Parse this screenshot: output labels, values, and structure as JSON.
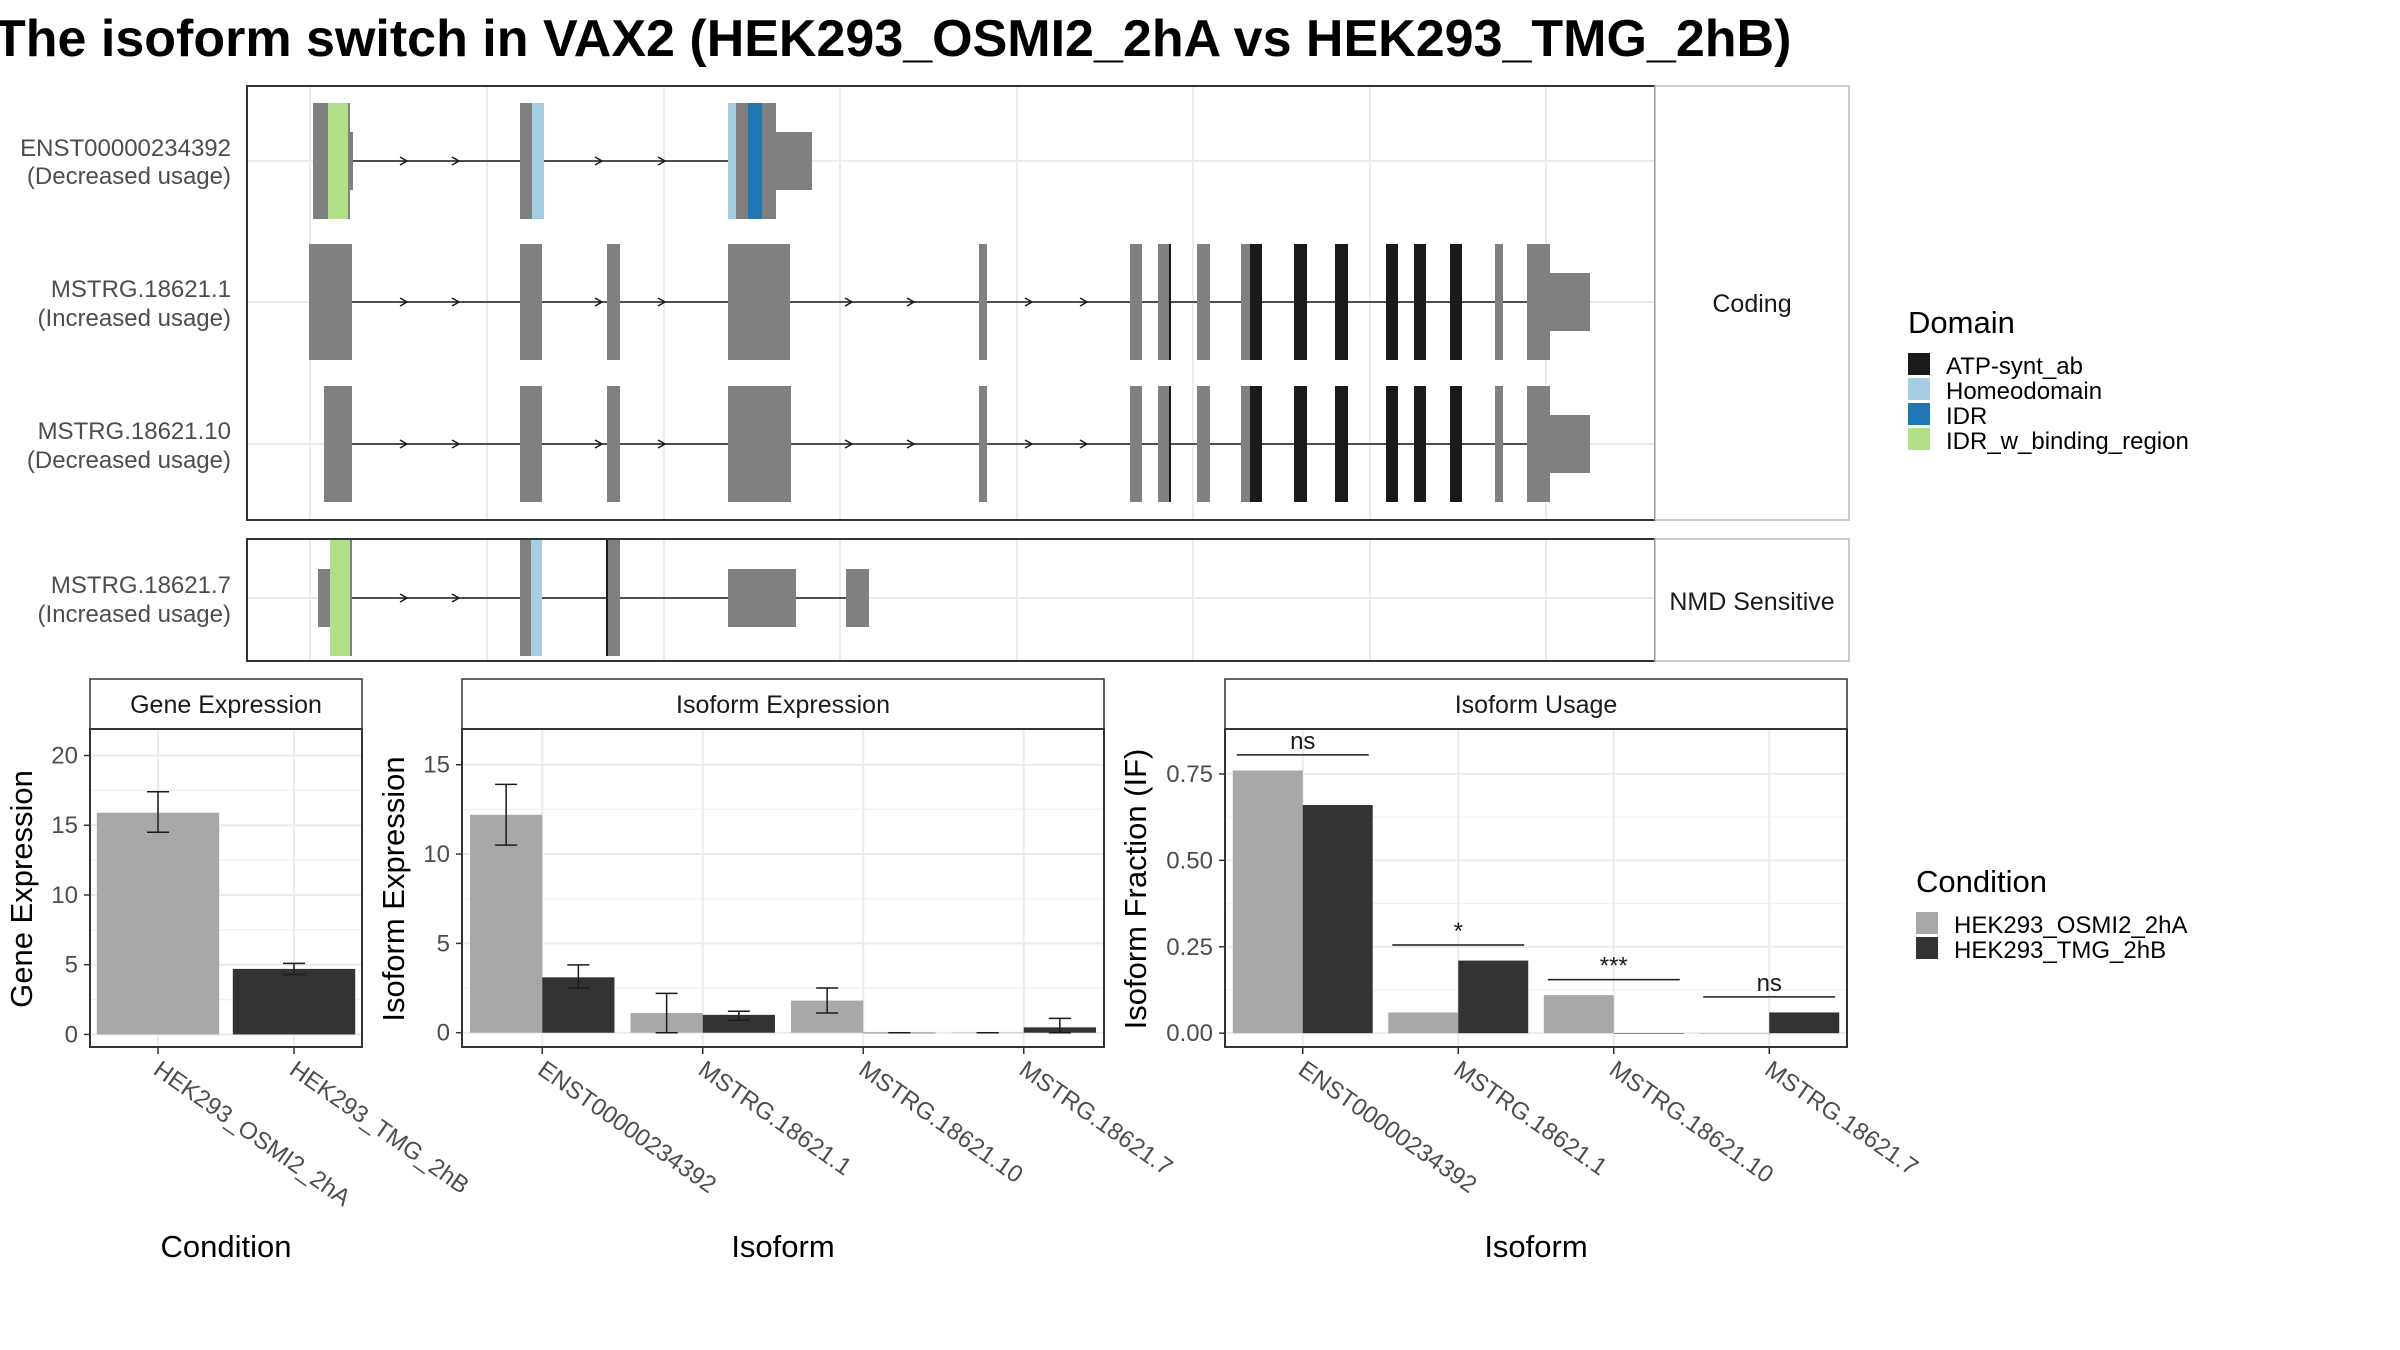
{
  "title": "The isoform switch in VAX2 (HEK293_OSMI2_2hA vs HEK293_TMG_2hB)",
  "colors": {
    "exon": "#808080",
    "ATP-synt_ab": "#1a1a1a",
    "Homeodomain": "#a6cee3",
    "IDR": "#1f78b4",
    "IDR_w_binding_region": "#b2df8a",
    "cond1": "#a8a8a8",
    "cond2": "#333333"
  },
  "structure": {
    "facets": [
      {
        "label": "Coding",
        "transcripts": [
          {
            "id": "ENST00000234392",
            "usage": "(Decreased usage)"
          },
          {
            "id": "MSTRG.18621.1",
            "usage": "(Increased usage)"
          },
          {
            "id": "MSTRG.18621.10",
            "usage": "(Decreased usage)"
          }
        ]
      },
      {
        "label": "NMD Sensitive",
        "transcripts": [
          {
            "id": "MSTRG.18621.7",
            "usage": "(Increased usage)"
          }
        ]
      }
    ]
  },
  "domain_legend": {
    "title": "Domain",
    "items": [
      {
        "label": "ATP-synt_ab",
        "color": "#1a1a1a"
      },
      {
        "label": "Homeodomain",
        "color": "#a6cee3"
      },
      {
        "label": "IDR",
        "color": "#1f78b4"
      },
      {
        "label": "IDR_w_binding_region",
        "color": "#b2df8a"
      }
    ]
  },
  "condition_legend": {
    "title": "Condition",
    "items": [
      {
        "label": "HEK293_OSMI2_2hA",
        "color": "#a8a8a8"
      },
      {
        "label": "HEK293_TMG_2hB",
        "color": "#333333"
      }
    ]
  },
  "chart_data": [
    {
      "type": "bar",
      "title": "Gene Expression",
      "xlabel": "Condition",
      "ylabel": "Gene Expression",
      "categories": [
        "HEK293_OSMI2_2hA",
        "HEK293_TMG_2hB"
      ],
      "values": [
        15.9,
        4.7
      ],
      "error": [
        [
          14.5,
          17.4
        ],
        [
          4.3,
          5.1
        ]
      ],
      "ylim": [
        -0.9,
        21.9
      ],
      "yticks": [
        0,
        5,
        10,
        15,
        20
      ]
    },
    {
      "type": "bar",
      "title": "Isoform Expression",
      "xlabel": "Isoform",
      "ylabel": "Isoform Expression",
      "categories": [
        "ENST00000234392",
        "MSTRG.18621.1",
        "MSTRG.18621.10",
        "MSTRG.18621.7"
      ],
      "series": [
        {
          "name": "HEK293_OSMI2_2hA",
          "values": [
            12.2,
            1.1,
            1.8,
            0.0
          ],
          "error": [
            [
              10.5,
              13.9
            ],
            [
              0.0,
              2.2
            ],
            [
              1.1,
              2.5
            ],
            [
              0.0,
              0.0
            ]
          ]
        },
        {
          "name": "HEK293_TMG_2hB",
          "values": [
            3.1,
            1.0,
            0.0,
            0.3
          ],
          "error": [
            [
              2.5,
              3.8
            ],
            [
              0.7,
              1.2
            ],
            [
              0.0,
              0.0
            ],
            [
              0.0,
              0.8
            ]
          ]
        }
      ],
      "ylim": [
        -0.8,
        17.0
      ],
      "yticks": [
        0,
        5,
        10,
        15
      ]
    },
    {
      "type": "bar",
      "title": "Isoform Usage",
      "xlabel": "Isoform",
      "ylabel": "Isoform Fraction (IF)",
      "categories": [
        "ENST00000234392",
        "MSTRG.18621.1",
        "MSTRG.18621.10",
        "MSTRG.18621.7"
      ],
      "series": [
        {
          "name": "HEK293_OSMI2_2hA",
          "values": [
            0.76,
            0.06,
            0.11,
            0.0
          ]
        },
        {
          "name": "HEK293_TMG_2hB",
          "values": [
            0.66,
            0.21,
            0.0,
            0.06
          ]
        }
      ],
      "significance": [
        "ns",
        "*",
        "***",
        "ns"
      ],
      "ylim": [
        -0.04,
        0.88
      ],
      "yticks": [
        0.0,
        0.25,
        0.5,
        0.75
      ],
      "ytick_labels": [
        "0.00",
        "0.25",
        "0.50",
        "0.75"
      ]
    }
  ]
}
